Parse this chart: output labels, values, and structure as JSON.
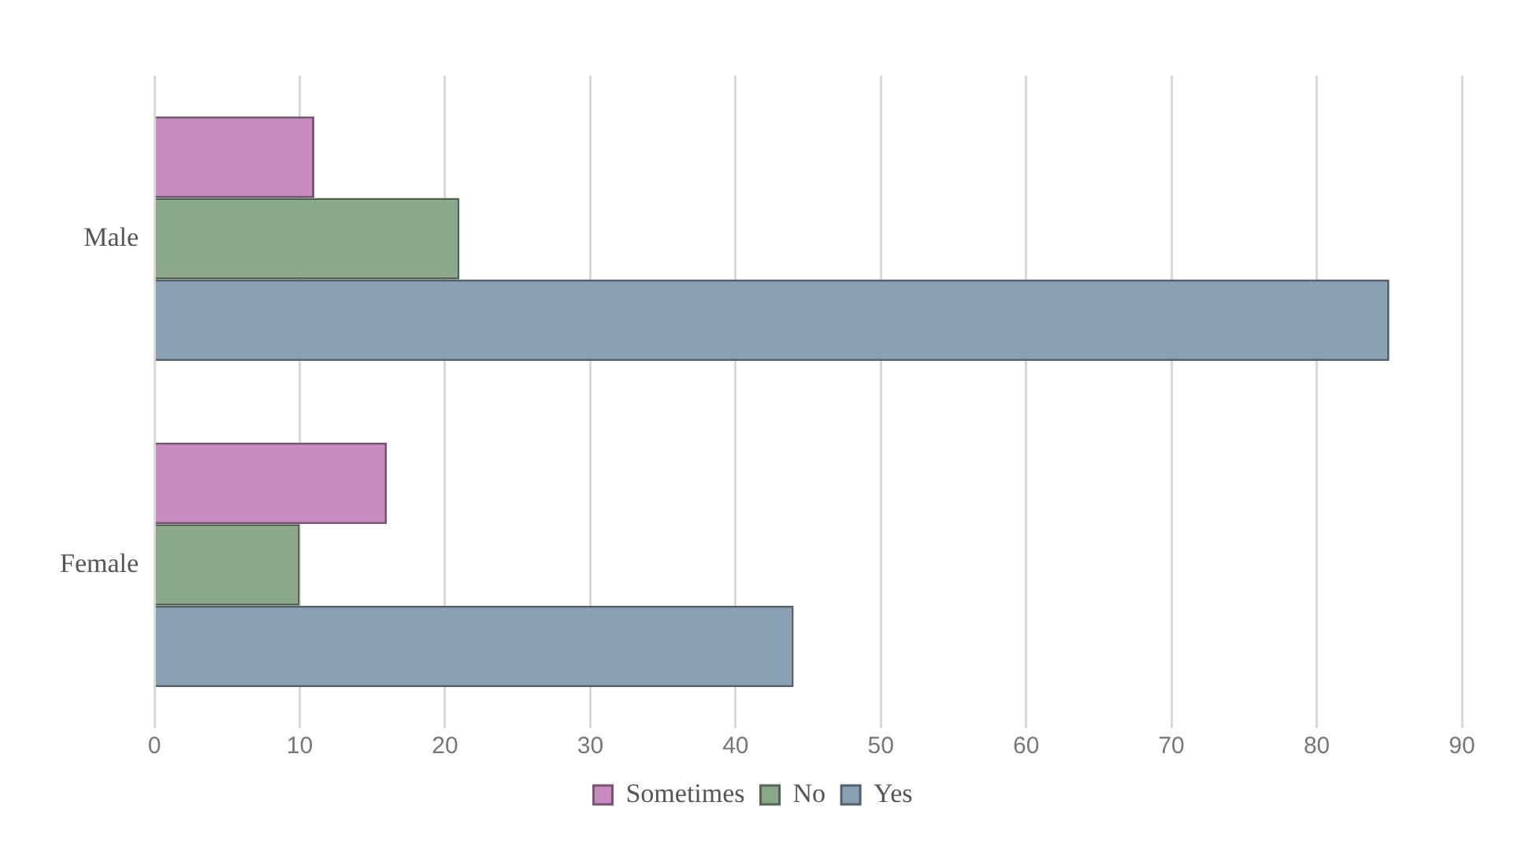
{
  "chart_data": {
    "type": "bar",
    "orientation": "horizontal",
    "categories": [
      "Male",
      "Female"
    ],
    "series": [
      {
        "name": "Sometimes",
        "color": "#c98bc0",
        "values": [
          11,
          16
        ]
      },
      {
        "name": "No",
        "color": "#8aa888",
        "values": [
          21,
          10
        ]
      },
      {
        "name": "Yes",
        "color": "#8aa0b4",
        "values": [
          85,
          44
        ]
      }
    ],
    "xlim": [
      0,
      90
    ],
    "xticks": [
      0,
      10,
      20,
      30,
      40,
      50,
      60,
      70,
      80,
      90
    ],
    "grid": "x",
    "legend": "bottom"
  }
}
